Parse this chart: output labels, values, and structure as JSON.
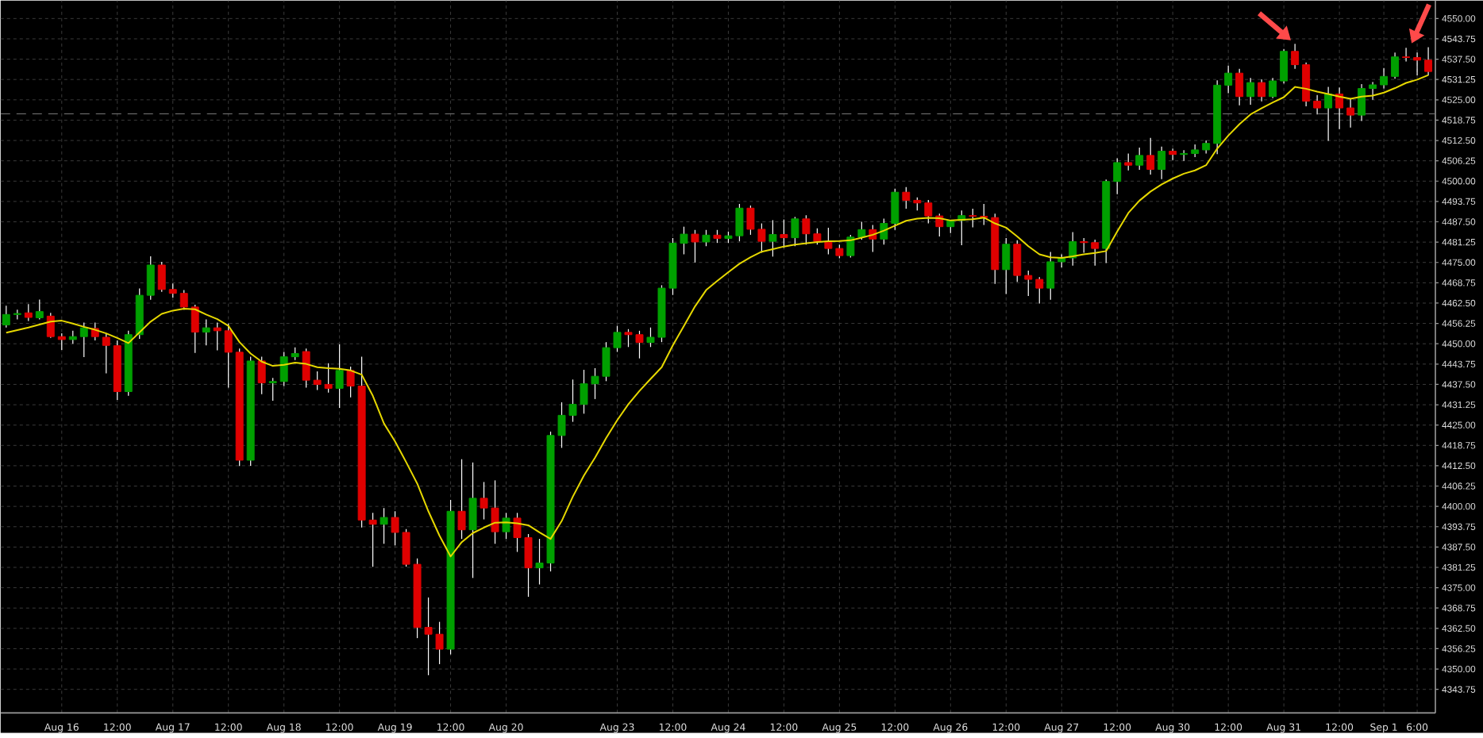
{
  "chart_data": {
    "type": "candlestick",
    "categories": [
      null,
      null,
      null,
      null,
      null,
      "Aug 16",
      null,
      null,
      null,
      null,
      "12:00",
      null,
      null,
      null,
      null,
      "Aug 17",
      null,
      null,
      null,
      null,
      "12:00",
      null,
      null,
      null,
      null,
      "Aug 18",
      null,
      null,
      null,
      null,
      "12:00",
      null,
      null,
      null,
      null,
      "Aug 19",
      null,
      null,
      null,
      null,
      "12:00",
      null,
      null,
      null,
      null,
      "Aug 20",
      null,
      null,
      null,
      null,
      null,
      null,
      null,
      null,
      null,
      "Aug 23",
      null,
      null,
      null,
      null,
      "12:00",
      null,
      null,
      null,
      null,
      "Aug 24",
      null,
      null,
      null,
      null,
      "12:00",
      null,
      null,
      null,
      null,
      "Aug 25",
      null,
      null,
      null,
      null,
      "12:00",
      null,
      null,
      null,
      null,
      "Aug 26",
      null,
      null,
      null,
      null,
      "12:00",
      null,
      null,
      null,
      null,
      "Aug 27",
      null,
      null,
      null,
      null,
      "12:00",
      null,
      null,
      null,
      null,
      "Aug 30",
      null,
      null,
      null,
      null,
      "12:00",
      null,
      null,
      null,
      null,
      "Aug 31",
      null,
      null,
      null,
      null,
      "12:00",
      null,
      null,
      null,
      "Sep 1",
      null,
      null,
      "6:00",
      null
    ],
    "ohlc": [
      [
        4455.8,
        4461.7,
        4455,
        4459
      ],
      [
        4459,
        4460.5,
        4457.5,
        4459.3
      ],
      [
        4459.5,
        4462.2,
        4457,
        4458.1
      ],
      [
        4458,
        4463.6,
        4457.5,
        4459.9
      ],
      [
        4458.5,
        4459.5,
        4451.8,
        4452.2
      ],
      [
        4452.2,
        4453.2,
        4448.1,
        4451.3
      ],
      [
        4451.3,
        4454,
        4450,
        4452.2
      ],
      [
        4452.2,
        4456.5,
        4445.9,
        4454.9
      ],
      [
        4454.7,
        4456.5,
        4451,
        4452.2
      ],
      [
        4452,
        4453,
        4440.9,
        4449.5
      ],
      [
        4449.4,
        4451,
        4432.7,
        4435.3
      ],
      [
        4435.3,
        4454,
        4434,
        4452.8
      ],
      [
        4452.8,
        4467,
        4451.5,
        4464.9
      ],
      [
        4464.9,
        4476.9,
        4463.5,
        4474.2
      ],
      [
        4474.2,
        4475.2,
        4466,
        4466.7
      ],
      [
        4466.7,
        4468.5,
        4464.2,
        4465.5
      ],
      [
        4465.5,
        4466.5,
        4460.5,
        4461.3
      ],
      [
        4461.3,
        4462,
        4447.2,
        4453.6
      ],
      [
        4453.6,
        4457.5,
        4449.5,
        4454.9
      ],
      [
        4454.9,
        4456.5,
        4448,
        4454
      ],
      [
        4454,
        4456.2,
        4436.5,
        4447.4
      ],
      [
        4447.4,
        4448.5,
        4412.4,
        4414.2
      ],
      [
        4414.2,
        4446,
        4412.5,
        4444.7
      ],
      [
        4444.7,
        4446,
        4434.5,
        4438
      ],
      [
        4438,
        4439.5,
        4432.5,
        4438.4
      ],
      [
        4438.4,
        4447.5,
        4437,
        4446
      ],
      [
        4446,
        4448.9,
        4445,
        4447
      ],
      [
        4447.6,
        4448.5,
        4436.5,
        4438.8
      ],
      [
        4438.8,
        4441.5,
        4435.8,
        4437.5
      ],
      [
        4437.5,
        4444,
        4435,
        4436.3
      ],
      [
        4436.3,
        4449.8,
        4430.3,
        4441.8
      ],
      [
        4441.8,
        4443,
        4433.5,
        4437
      ],
      [
        4437,
        4446,
        4393.5,
        4395.8
      ],
      [
        4395.8,
        4398,
        4381.4,
        4394.5
      ],
      [
        4394.5,
        4399.5,
        4388.5,
        4396.6
      ],
      [
        4396.6,
        4398.5,
        4388,
        4392
      ],
      [
        4392,
        4393,
        4381.5,
        4382.2
      ],
      [
        4382.2,
        4384,
        4359.5,
        4362.8
      ],
      [
        4362.8,
        4372,
        4348.1,
        4360.7
      ],
      [
        4360.7,
        4364.5,
        4351.5,
        4356.1
      ],
      [
        4356.1,
        4402,
        4354.5,
        4398.5
      ],
      [
        4398.5,
        4414.5,
        4390,
        4392.8
      ],
      [
        4392.8,
        4413.5,
        4378,
        4402.5
      ],
      [
        4402.5,
        4407.5,
        4396,
        4399.5
      ],
      [
        4399.5,
        4408,
        4388.5,
        4392.2
      ],
      [
        4392.2,
        4398,
        4390,
        4396.4
      ],
      [
        4396.4,
        4398,
        4386,
        4390.4
      ],
      [
        4390.4,
        4391.5,
        4372.2,
        4381.1
      ],
      [
        4381.1,
        4390,
        4376,
        4382.6
      ],
      [
        4382.6,
        4423,
        4380,
        4421.8
      ],
      [
        4421.8,
        4432,
        4418,
        4428
      ],
      [
        4428,
        4439,
        4426,
        4431.4
      ],
      [
        4431.4,
        4442,
        4428.5,
        4437.7
      ],
      [
        4437.7,
        4442.5,
        4433,
        4440
      ],
      [
        4440,
        4450.5,
        4438.5,
        4448.8
      ],
      [
        4448.8,
        4455.5,
        4447.5,
        4453.5
      ],
      [
        4453.5,
        4454.5,
        4449,
        4452.8
      ],
      [
        4452.8,
        4454,
        4445.5,
        4450.4
      ],
      [
        4450.4,
        4455,
        4449,
        4452
      ],
      [
        4452,
        4468,
        4450.5,
        4467.1
      ],
      [
        4467.1,
        4482.5,
        4465,
        4480.9
      ],
      [
        4480.9,
        4486,
        4477.5,
        4483.7
      ],
      [
        4483.7,
        4485,
        4475,
        4481.3
      ],
      [
        4481.3,
        4485,
        4480,
        4483.4
      ],
      [
        4483.4,
        4485,
        4481,
        4482.4
      ],
      [
        4482.4,
        4484.5,
        4481,
        4483.2
      ],
      [
        4483.2,
        4493,
        4481.5,
        4491.7
      ],
      [
        4491.7,
        4492.5,
        4483.5,
        4485.2
      ],
      [
        4485.2,
        4487,
        4478,
        4481.5
      ],
      [
        4481.5,
        4488,
        4476.8,
        4483.6
      ],
      [
        4483.6,
        4488.2,
        4479.5,
        4482.6
      ],
      [
        4482.6,
        4489,
        4480,
        4488.4
      ],
      [
        4488.4,
        4489.5,
        4480.5,
        4483.8
      ],
      [
        4483.8,
        4485.5,
        4480.5,
        4481.5
      ],
      [
        4481.5,
        4485.7,
        4477.5,
        4479.3
      ],
      [
        4479.3,
        4480.5,
        4476.3,
        4477.1
      ],
      [
        4477.1,
        4483.5,
        4476.5,
        4482.8
      ],
      [
        4482.8,
        4487.5,
        4482,
        4485.1
      ],
      [
        4485.1,
        4486.5,
        4478.2,
        4482.2
      ],
      [
        4482.2,
        4488.5,
        4480.5,
        4487
      ],
      [
        4487,
        4497.7,
        4485,
        4496.6
      ],
      [
        4496.6,
        4498.2,
        4491.5,
        4494.1
      ],
      [
        4494.1,
        4495,
        4491,
        4493.3
      ],
      [
        4493.3,
        4494.2,
        4487,
        4489.3
      ],
      [
        4489.3,
        4490,
        4483,
        4486
      ],
      [
        4486,
        4488,
        4484,
        4487.9
      ],
      [
        4487.9,
        4491,
        4480.3,
        4489.4
      ],
      [
        4489.4,
        4491.5,
        4485.8,
        4489.2
      ],
      [
        4489.2,
        4493,
        4486.5,
        4488.8
      ],
      [
        4488.8,
        4490,
        4468.4,
        4472.8
      ],
      [
        4472.8,
        4482.5,
        4465.3,
        4480.6
      ],
      [
        4480.6,
        4481.8,
        4469,
        4471
      ],
      [
        4471,
        4472.5,
        4464.7,
        4469.8
      ],
      [
        4469.8,
        4470.5,
        4462.4,
        4467.1
      ],
      [
        4467.1,
        4478.2,
        4463.5,
        4475.2
      ],
      [
        4475.2,
        4477.5,
        4473.5,
        4476.4
      ],
      [
        4476.4,
        4484.3,
        4474,
        4481.4
      ],
      [
        4481.4,
        4482.5,
        4478,
        4481.1
      ],
      [
        4481.1,
        4482,
        4474,
        4479.3
      ],
      [
        4479.3,
        4500.5,
        4474.8,
        4499.9
      ],
      [
        4499.9,
        4507,
        4496,
        4505.7
      ],
      [
        4505.7,
        4508.5,
        4503.3,
        4504.9
      ],
      [
        4504.9,
        4510.3,
        4503.5,
        4507.9
      ],
      [
        4507.9,
        4513.3,
        4502,
        4503.6
      ],
      [
        4503.6,
        4510.6,
        4500.6,
        4509.2
      ],
      [
        4509.2,
        4510,
        4506.5,
        4508.2
      ],
      [
        4508.2,
        4509.5,
        4506.2,
        4508.5
      ],
      [
        4508.5,
        4511.3,
        4507.4,
        4509.6
      ],
      [
        4509.6,
        4512.5,
        4508.5,
        4511.6
      ],
      [
        4511.6,
        4531,
        4508.3,
        4529.5
      ],
      [
        4529.5,
        4535.5,
        4527,
        4533.2
      ],
      [
        4533.2,
        4534.5,
        4523.3,
        4526
      ],
      [
        4526,
        4531.7,
        4523.5,
        4530.3
      ],
      [
        4530.3,
        4531.3,
        4524.5,
        4526
      ],
      [
        4526,
        4531.7,
        4525.5,
        4530.8
      ],
      [
        4530.8,
        4540.6,
        4530,
        4539.9
      ],
      [
        4539.9,
        4542.2,
        4534.5,
        4535.8
      ],
      [
        4535.8,
        4536.5,
        4523,
        4524.6
      ],
      [
        4524.6,
        4526.5,
        4520.5,
        4522.5
      ],
      [
        4522.5,
        4529,
        4512.4,
        4526.8
      ],
      [
        4526.8,
        4528.8,
        4516,
        4522.5
      ],
      [
        4522.5,
        4525.5,
        4516.5,
        4520.3
      ],
      [
        4520.3,
        4529.8,
        4518.5,
        4528.5
      ],
      [
        4528.5,
        4530.5,
        4525,
        4529.6
      ],
      [
        4529.6,
        4534.8,
        4528.5,
        4532.2
      ],
      [
        4532.2,
        4539.5,
        4531.5,
        4538.2
      ],
      [
        4538.2,
        4541,
        4536.8,
        4538
      ],
      [
        4538,
        4539.5,
        4532.5,
        4537.2
      ],
      [
        4537.2,
        4541.2,
        4532.5,
        4533.7
      ]
    ],
    "colors": [
      "#00a000",
      "#00a000",
      "#e00000",
      "#00a000",
      "#e00000",
      "#e00000",
      "#00a000",
      "#00a000",
      "#e00000",
      "#e00000",
      "#e00000",
      "#00a000",
      "#00a000",
      "#00a000",
      "#e00000",
      "#e00000",
      "#e00000",
      "#e00000",
      "#00a000",
      "#e00000",
      "#e00000",
      "#e00000",
      "#00a000",
      "#e00000",
      "#00a000",
      "#00a000",
      "#00a000",
      "#e00000",
      "#e00000",
      "#e00000",
      "#00a000",
      "#e00000",
      "#e00000",
      "#e00000",
      "#00a000",
      "#e00000",
      "#e00000",
      "#e00000",
      "#e00000",
      "#e00000",
      "#00a000",
      "#e00000",
      "#00a000",
      "#e00000",
      "#e00000",
      "#00a000",
      "#e00000",
      "#e00000",
      "#00a000",
      "#00a000",
      "#00a000",
      "#00a000",
      "#00a000",
      "#00a000",
      "#00a000",
      "#00a000",
      "#e00000",
      "#e00000",
      "#00a000",
      "#00a000",
      "#00a000",
      "#00a000",
      "#e00000",
      "#00a000",
      "#e00000",
      "#00a000",
      "#00a000",
      "#e00000",
      "#e00000",
      "#00a000",
      "#e00000",
      "#00a000",
      "#e00000",
      "#e00000",
      "#e00000",
      "#e00000",
      "#00a000",
      "#00a000",
      "#e00000",
      "#00a000",
      "#00a000",
      "#e00000",
      "#e00000",
      "#e00000",
      "#e00000",
      "#00a000",
      "#00a000",
      "#e00000",
      "#e00000",
      "#e00000",
      "#00a000",
      "#e00000",
      "#e00000",
      "#e00000",
      "#00a000",
      "#00a000",
      "#00a000",
      "#e00000",
      "#e00000",
      "#00a000",
      "#00a000",
      "#e00000",
      "#00a000",
      "#e00000",
      "#00a000",
      "#e00000",
      "#00a000",
      "#00a000",
      "#00a000",
      "#00a000",
      "#00a000",
      "#e00000",
      "#00a000",
      "#e00000",
      "#00a000",
      "#00a000",
      "#e00000",
      "#e00000",
      "#e00000",
      "#00a000",
      "#e00000",
      "#e00000",
      "#00a000",
      "#00a000",
      "#00a000",
      "#00a000",
      "#e00000",
      "#e00000",
      "#e00000"
    ],
    "series": [
      {
        "type": "line",
        "color": "#e6d800",
        "values": [
          4453.4,
          4454.2,
          4455,
          4455.9,
          4456.8,
          4457.1,
          4456.2,
          4455.2,
          4454.3,
          4453.2,
          4451.8,
          4450.2,
          4453.5,
          4456.8,
          4459.2,
          4460.2,
          4460.8,
          4460.6,
          4459,
          4457.6,
          4455.5,
          4450.5,
          4447,
          4444.5,
          4443.2,
          4443.5,
          4444.2,
          4443.8,
          4442.8,
          4442.5,
          4442.3,
          4441.8,
          4440.5,
          4434,
          4425.5,
          4420,
          4413.6,
          4407,
          4398.5,
          4391,
          4384.6,
          4389,
          4391.8,
          4393.5,
          4395,
          4395.1,
          4394.8,
          4394.2,
          4392,
          4390,
          4395.5,
          4403,
          4409.5,
          4415,
          4421,
          4426.5,
          4431.4,
          4435.5,
          4439.2,
          4442.8,
          4449.5,
          4455.5,
          4461.5,
          4466.5,
          4469.3,
          4472,
          4474.6,
          4476.6,
          4478.3,
          4479.1,
          4479.9,
          4480.5,
          4480.9,
          4481.3,
          4481.5,
          4481.6,
          4481.8,
          4482.6,
          4483.5,
          4484.8,
          4486.3,
          4487.8,
          4488.5,
          4488.7,
          4488.6,
          4487.9,
          4488.1,
          4488.3,
          4488.8,
          4487,
          4485.7,
          4483,
          4480,
          4477.5,
          4476.6,
          4476.4,
          4476.9,
          4477.5,
          4477.9,
          4478.5,
          4484.5,
          4490.2,
          4494,
          4496.8,
          4499,
          4500.8,
          4502.3,
          4503.3,
          4504.9,
          4510,
          4514,
          4517.5,
          4520.5,
          4522.4,
          4524.2,
          4525.8,
          4529,
          4528.4,
          4527.5,
          4526.8,
          4526,
          4525.3,
          4526,
          4526.3,
          4527.2,
          4528.6,
          4530.2,
          4531.2,
          4532.6
        ]
      }
    ],
    "ylim": [
      4336.5,
      4555.5
    ],
    "yticks": [
      {
        "value": 4343.75,
        "label": "4343.75"
      },
      {
        "value": 4350,
        "label": "4350.00"
      },
      {
        "value": 4356.25,
        "label": "4356.25"
      },
      {
        "value": 4362.5,
        "label": "4362.50"
      },
      {
        "value": 4368.75,
        "label": "4368.75"
      },
      {
        "value": 4375,
        "label": "4375.00"
      },
      {
        "value": 4381.25,
        "label": "4381.25"
      },
      {
        "value": 4387.5,
        "label": "4387.50"
      },
      {
        "value": 4393.75,
        "label": "4393.75"
      },
      {
        "value": 4400,
        "label": "4400.00"
      },
      {
        "value": 4406.25,
        "label": "4406.25"
      },
      {
        "value": 4412.5,
        "label": "4412.50"
      },
      {
        "value": 4418.75,
        "label": "4418.75"
      },
      {
        "value": 4425,
        "label": "4425.00"
      },
      {
        "value": 4431.25,
        "label": "4431.25"
      },
      {
        "value": 4437.5,
        "label": "4437.50"
      },
      {
        "value": 4443.75,
        "label": "4443.75"
      },
      {
        "value": 4450,
        "label": "4450.00"
      },
      {
        "value": 4456.25,
        "label": "4456.25"
      },
      {
        "value": 4462.5,
        "label": "4462.50"
      },
      {
        "value": 4468.75,
        "label": "4468.75"
      },
      {
        "value": 4475,
        "label": "4475.00"
      },
      {
        "value": 4481.25,
        "label": "4481.25"
      },
      {
        "value": 4487.5,
        "label": "4487.50"
      },
      {
        "value": 4493.75,
        "label": "4493.75"
      },
      {
        "value": 4500,
        "label": "4500.00"
      },
      {
        "value": 4506.25,
        "label": "4506.25"
      },
      {
        "value": 4512.5,
        "label": "4512.50"
      },
      {
        "value": 4518.75,
        "label": "4518.75"
      },
      {
        "value": 4525,
        "label": "4525.00"
      },
      {
        "value": 4531.25,
        "label": "4531.25"
      },
      {
        "value": 4537.5,
        "label": "4537.50"
      },
      {
        "value": 4543.75,
        "label": "4543.75"
      },
      {
        "value": 4550,
        "label": "4550.00"
      }
    ],
    "grid": true,
    "ref_lines": [
      {
        "axis": "y",
        "value": 4520.7,
        "color": "#707070",
        "line_style": "dashed"
      }
    ]
  }
}
